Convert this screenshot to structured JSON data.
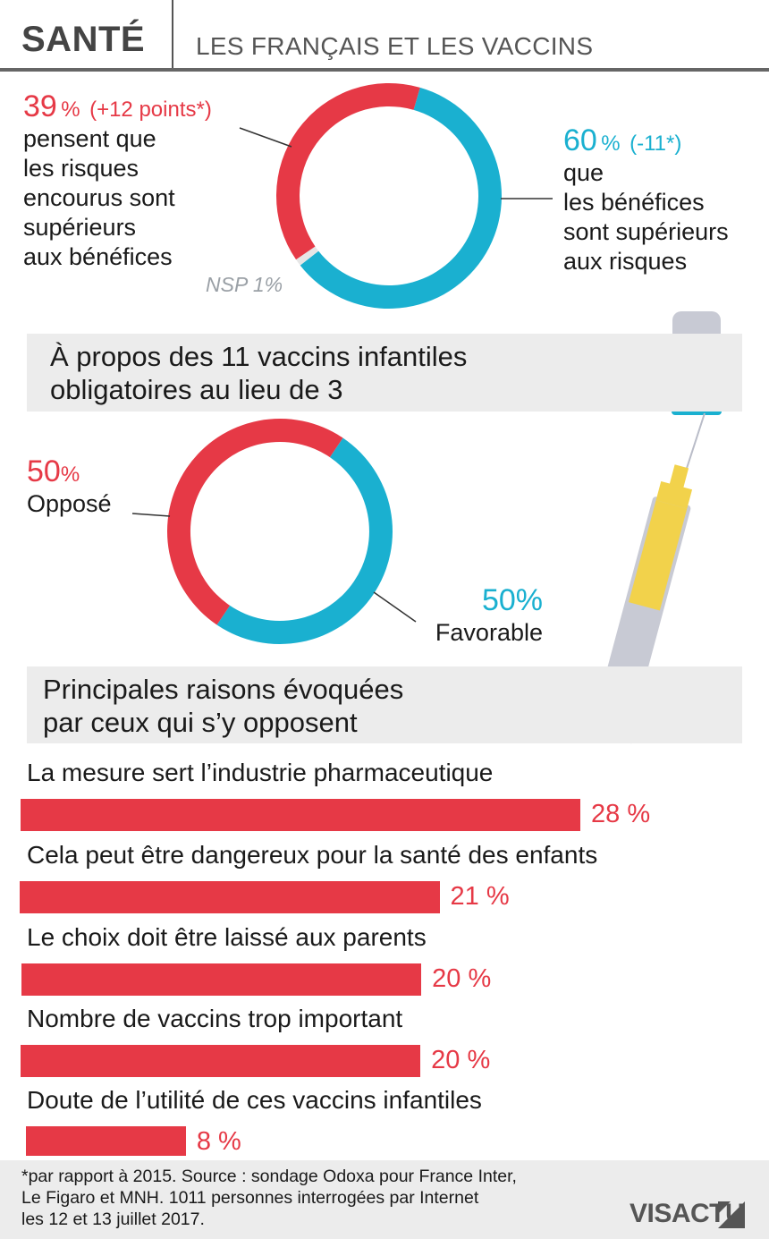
{
  "header": {
    "title": "SANTÉ",
    "subtitle": "LES FRANÇAIS ET LES VACCINS"
  },
  "section1": {
    "left_pct": "39",
    "left_pct_sign": "%",
    "left_delta": "(+12 points*)",
    "left_lines": [
      "pensent que",
      "les risques",
      "encourus sont",
      "supérieurs",
      "aux bénéfices"
    ],
    "right_pct": "60",
    "right_pct_sign": "%",
    "right_delta": "(-11*)",
    "right_lines": [
      "que",
      "les bénéfices",
      "sont supérieurs",
      "aux risques"
    ],
    "nsp_label": "NSP 1%"
  },
  "banner1": {
    "lines": [
      "À propos des 11 vaccins infantiles",
      "obligatoires au lieu de 3"
    ]
  },
  "section2": {
    "left_pct": "50",
    "left_pct_sign": "%",
    "left_label": "Opposé",
    "right_pct": "50%",
    "right_label": "Favorable"
  },
  "banner2": {
    "lines": [
      "Principales raisons évoquées",
      "par ceux qui s’y opposent"
    ]
  },
  "chart_data": [
    {
      "type": "pie",
      "categories": [
        "pensent que les risques encourus sont supérieurs aux bénéfices",
        "que les bénéfices sont supérieurs aux risques",
        "NSP"
      ],
      "values": [
        39,
        60,
        1
      ],
      "colors": [
        "#e63946",
        "#1ab0d0",
        "#e6e6e6"
      ]
    },
    {
      "type": "pie",
      "categories": [
        "Opposé",
        "Favorable"
      ],
      "values": [
        50,
        50
      ],
      "colors": [
        "#e63946",
        "#1ab0d0"
      ]
    },
    {
      "type": "bar",
      "categories": [
        "La mesure sert l’industrie pharmaceutique",
        "Cela peut être dangereux pour la santé des enfants",
        "Le choix doit être laissé aux parents",
        "Nombre de vaccins trop important",
        "Doute de l’utilité de ces vaccins infantiles"
      ],
      "values": [
        28,
        21,
        20,
        20,
        8
      ],
      "value_labels": [
        "28 %",
        "21 %",
        "20 %",
        "20 %",
        "8 %"
      ],
      "color": "#e63946"
    }
  ],
  "footer": {
    "note_lines": [
      "*par rapport à 2015. Source : sondage Odoxa pour France Inter,",
      "Le Figaro et MNH. 1011 personnes interrogées par Internet",
      "les 12 et 13 juillet 2017."
    ],
    "logo_text": "VISACTU"
  },
  "colors": {
    "red": "#e63946",
    "blue": "#1ab0d0",
    "grey_band": "#ececec"
  }
}
